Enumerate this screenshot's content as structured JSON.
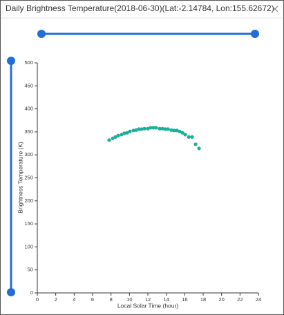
{
  "chart_data": {
    "type": "scatter",
    "title": "Daily Brightness Temperature(2018-06-30)(Lat:-2.14784, Lon:155.62672)",
    "x_label": "Local Solar Time (hour)",
    "y_label": "Brightness Temperature (K)",
    "color": "#19b09c",
    "x": [
      7.8,
      8.18,
      8.48,
      8.78,
      9.15,
      9.45,
      9.75,
      10.05,
      10.43,
      10.73,
      11.03,
      11.33,
      11.63,
      12.0,
      12.3,
      12.6,
      12.9,
      13.28,
      13.58,
      13.88,
      14.18,
      14.55,
      14.85,
      15.15,
      15.45,
      15.75,
      16.05,
      16.43,
      16.8,
      17.18,
      17.55
    ],
    "values": [
      332,
      336,
      339,
      342,
      344,
      347,
      348,
      351,
      353,
      354,
      356,
      356,
      357,
      357,
      359,
      359,
      359,
      357,
      357,
      356,
      356,
      354,
      353,
      353,
      351,
      348,
      344,
      339,
      339,
      323,
      314
    ],
    "xlim": [
      0,
      24
    ],
    "xticks": [
      0,
      2,
      4,
      6,
      8,
      10,
      12,
      14,
      16,
      18,
      20,
      22,
      24
    ],
    "ylim": [
      0,
      500
    ],
    "yticks": [
      0,
      50,
      100,
      150,
      200,
      250,
      300,
      350,
      400,
      450,
      500
    ]
  }
}
